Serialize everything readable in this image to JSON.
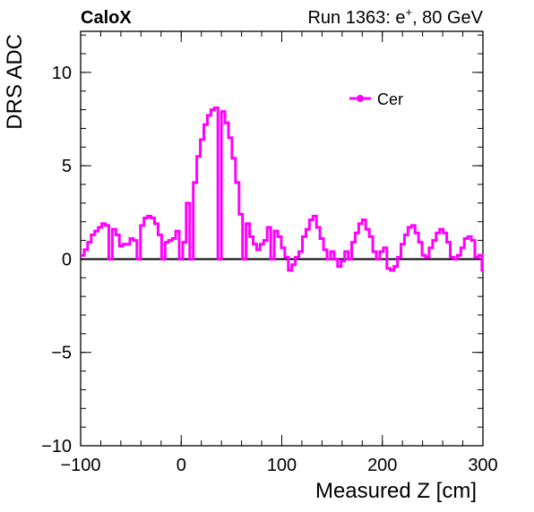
{
  "chart_data": {
    "type": "line",
    "title": "",
    "brand_label": "CaloX",
    "run_label": {
      "prefix": "Run 1363: e",
      "superscript": "+",
      "suffix": ", 80 GeV"
    },
    "xlabel": "Measured Z [cm]",
    "ylabel": "DRS ADC",
    "xlim": [
      -100,
      300
    ],
    "ylim": [
      -10,
      12.2
    ],
    "x_ticks": [
      {
        "value": -100,
        "label": "−100"
      },
      {
        "value": 0,
        "label": "0"
      },
      {
        "value": 100,
        "label": "100"
      },
      {
        "value": 200,
        "label": "200"
      },
      {
        "value": 300,
        "label": "300"
      }
    ],
    "y_ticks": [
      {
        "value": -10,
        "label": "−10"
      },
      {
        "value": -5,
        "label": "−5"
      },
      {
        "value": 0,
        "label": "0"
      },
      {
        "value": 5,
        "label": "5"
      },
      {
        "value": 10,
        "label": "10"
      }
    ],
    "x_minor_step": 20,
    "y_minor_step": 1,
    "reference_line_y": 0,
    "grid": false,
    "legend": {
      "position": "top-right"
    },
    "series": [
      {
        "name": "Cer",
        "color": "#ff00ff",
        "step": "histogram",
        "bin_width": 3.5,
        "x": [
          -100,
          -96.5,
          -93,
          -89.5,
          -86,
          -82.5,
          -79,
          -75.5,
          -72,
          -68.5,
          -65,
          -61.5,
          -58,
          -54.5,
          -51,
          -47.5,
          -44,
          -40.5,
          -37,
          -33.5,
          -30,
          -26.5,
          -23,
          -19.5,
          -16,
          -12.5,
          -9,
          -5.5,
          -2,
          1.5,
          5,
          8.5,
          12,
          15.5,
          19,
          22.5,
          26,
          29.5,
          33,
          36.5,
          40,
          43.5,
          47,
          50.5,
          54,
          57.5,
          61,
          64.5,
          68,
          71.5,
          75,
          78.5,
          82,
          85.5,
          89,
          92.5,
          96,
          99.5,
          103,
          106.5,
          110,
          113.5,
          117,
          120.5,
          124,
          127.5,
          131,
          134.5,
          138,
          141.5,
          145,
          148.5,
          152,
          155.5,
          159,
          162.5,
          166,
          169.5,
          173,
          176.5,
          180,
          183.5,
          187,
          190.5,
          194,
          197.5,
          201,
          204.5,
          208,
          211.5,
          215,
          218.5,
          222,
          225.5,
          229,
          232.5,
          236,
          239.5,
          243,
          246.5,
          250,
          253.5,
          257,
          260.5,
          264,
          267.5,
          271,
          274.5,
          278,
          281.5,
          285,
          288.5,
          292,
          295.5,
          299
        ],
        "y": [
          0.2,
          0.5,
          0.9,
          1.3,
          1.5,
          1.7,
          1.9,
          1.8,
          0,
          1.6,
          1.3,
          0.7,
          0.8,
          0.8,
          1.1,
          1.0,
          0,
          1.8,
          2.2,
          2.3,
          2.2,
          1.9,
          1.3,
          0,
          0.9,
          1.0,
          1.1,
          1.5,
          0,
          0.9,
          3.0,
          0,
          4.1,
          5.5,
          6.4,
          7.2,
          7.7,
          8.0,
          8.1,
          0,
          7.9,
          7.3,
          6.5,
          5.4,
          4.1,
          2.4,
          0,
          1.9,
          1.2,
          0.8,
          0.5,
          0.8,
          1.0,
          1.7,
          0,
          1.5,
          1.2,
          0.6,
          0.1,
          -0.6,
          -0.3,
          0.1,
          0.4,
          1.2,
          1.6,
          2.1,
          2.3,
          1.7,
          1.1,
          0.5,
          0,
          0.4,
          0,
          -0.4,
          -0.1,
          0.4,
          0,
          0.9,
          1.4,
          1.9,
          2.1,
          1.6,
          1.2,
          0.4,
          0,
          0.4,
          0.6,
          -0.5,
          -0.6,
          -0.4,
          0.1,
          0.8,
          1.3,
          1.7,
          1.8,
          1.4,
          0.9,
          0.2,
          0.1,
          0.6,
          1.0,
          1.4,
          1.6,
          1.4,
          0.9,
          0.1,
          0,
          0.2,
          0.6,
          1.1,
          1.2,
          1.0,
          0.1,
          0.2,
          -0.6
        ]
      }
    ]
  }
}
